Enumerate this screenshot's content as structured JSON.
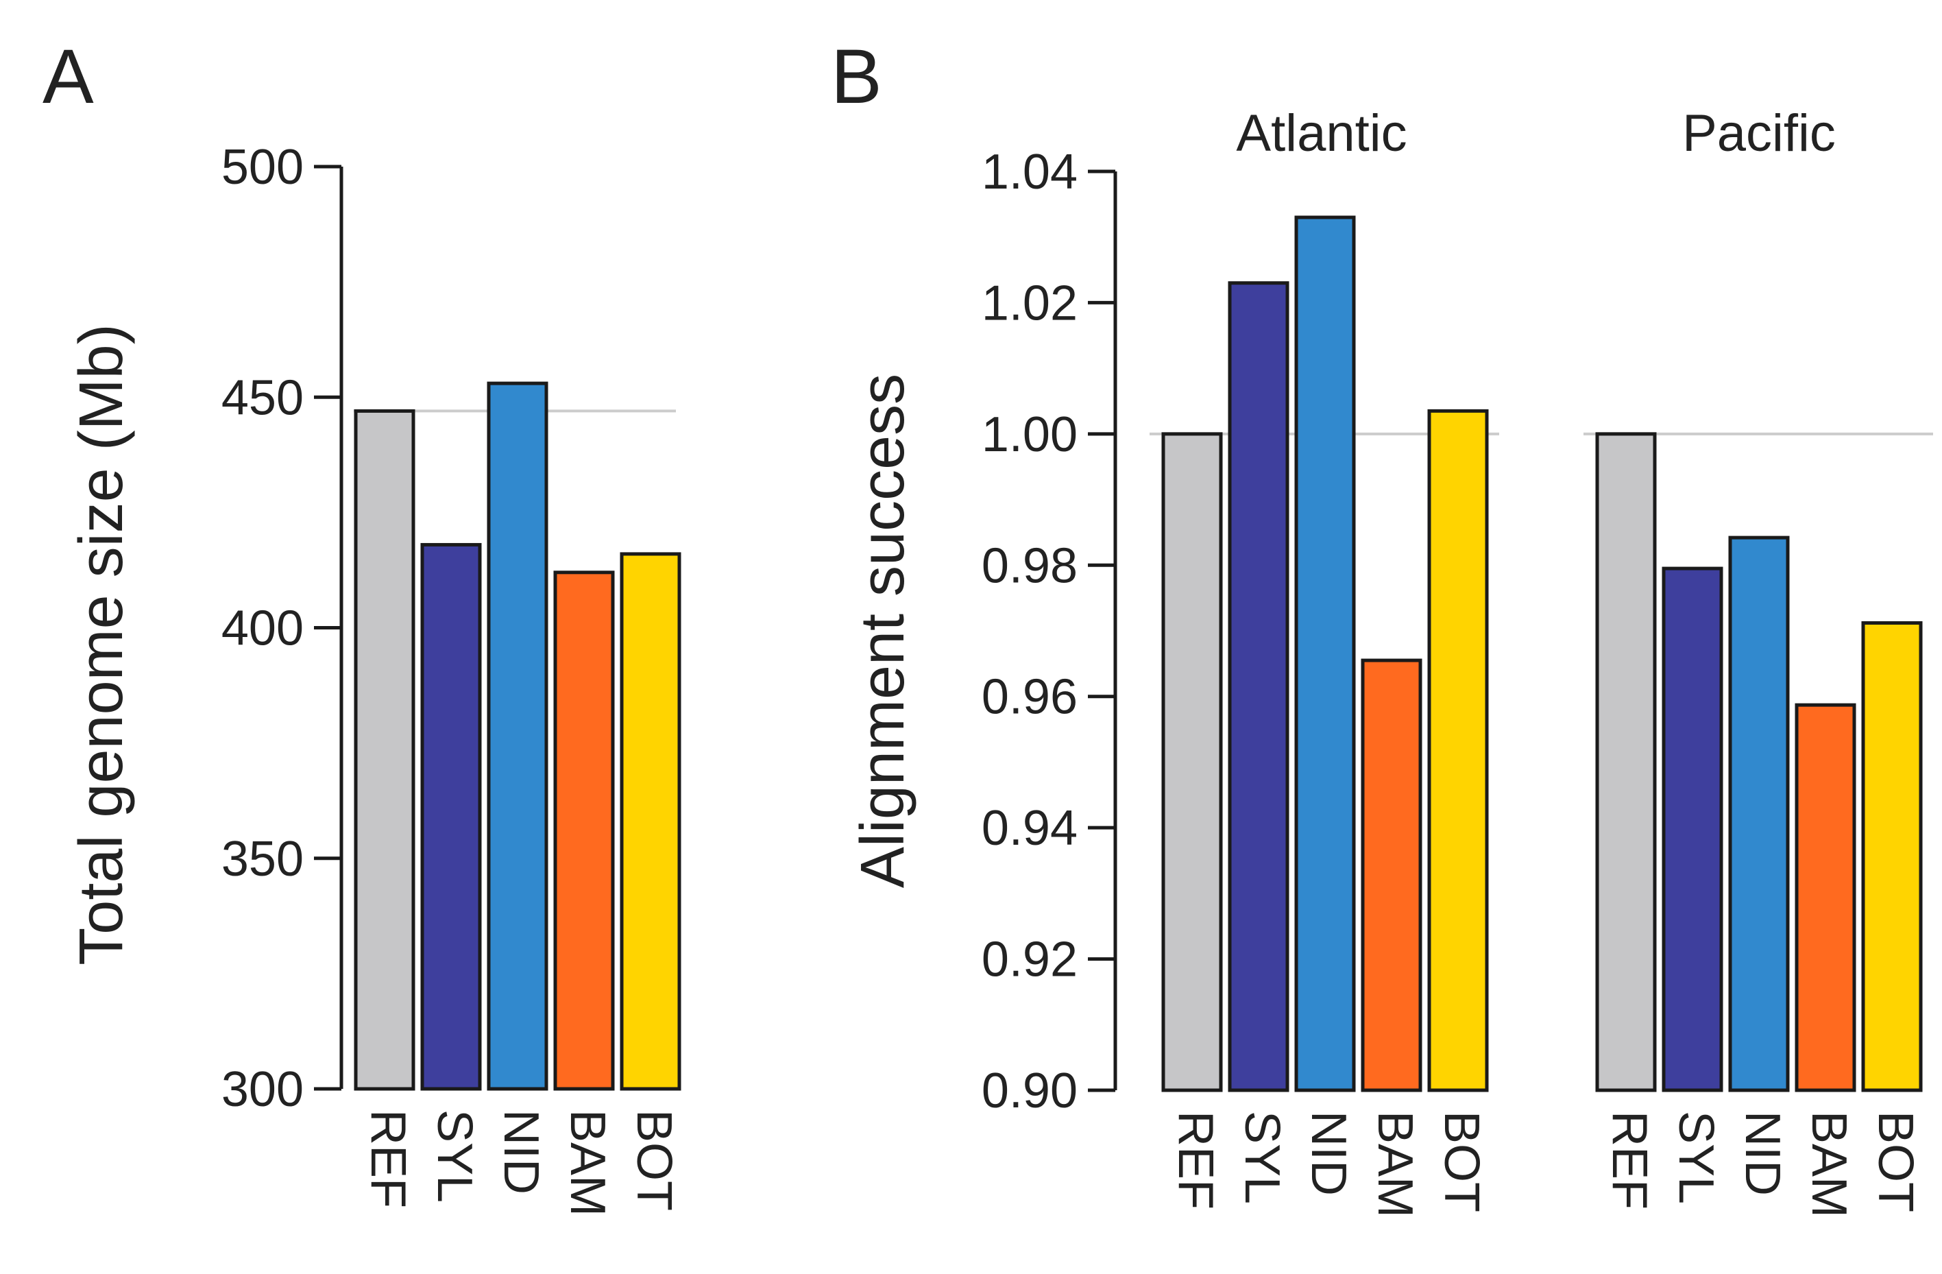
{
  "panels": {
    "A": {
      "letter": "A"
    },
    "B": {
      "letter": "B"
    }
  },
  "colors": {
    "REF": "#c6c6c8",
    "SYL": "#3e3f9d",
    "NID": "#3189ce",
    "BAM": "#ff6a1f",
    "BOT": "#ffd400",
    "outline": "#1a1a1a",
    "reference_line": "#cccccc"
  },
  "chart_data": [
    {
      "type": "bar",
      "panel": "A",
      "title": "",
      "xlabel": "",
      "ylabel": "Total genome size (Mb)",
      "categories": [
        "REF",
        "SYL",
        "NID",
        "BAM",
        "BOT"
      ],
      "values": [
        447,
        418,
        453,
        412,
        416
      ],
      "ylim": [
        300,
        500
      ],
      "yticks": [
        300,
        350,
        400,
        450,
        500
      ],
      "ytick_labels": [
        "300",
        "350",
        "400",
        "450",
        "500"
      ],
      "reference_line": 447,
      "grid": false
    },
    {
      "type": "bar",
      "panel": "B",
      "title": "",
      "xlabel": "",
      "ylabel": "Alignment success",
      "categories": [
        "REF",
        "SYL",
        "NID",
        "BAM",
        "BOT"
      ],
      "ylim": [
        0.9,
        1.04
      ],
      "yticks": [
        0.9,
        0.92,
        0.94,
        0.96,
        0.98,
        1.0,
        1.02,
        1.04
      ],
      "ytick_labels": [
        "0.90",
        "0.92",
        "0.94",
        "0.96",
        "0.98",
        "1.00",
        "1.02",
        "1.04"
      ],
      "reference_line": 1.0,
      "grid": false,
      "facets": [
        {
          "name": "Atlantic",
          "values": [
            1.0,
            1.023,
            1.033,
            0.9655,
            1.0035
          ]
        },
        {
          "name": "Pacific",
          "values": [
            1.0,
            0.9795,
            0.9842,
            0.9587,
            0.9712
          ]
        }
      ]
    }
  ]
}
